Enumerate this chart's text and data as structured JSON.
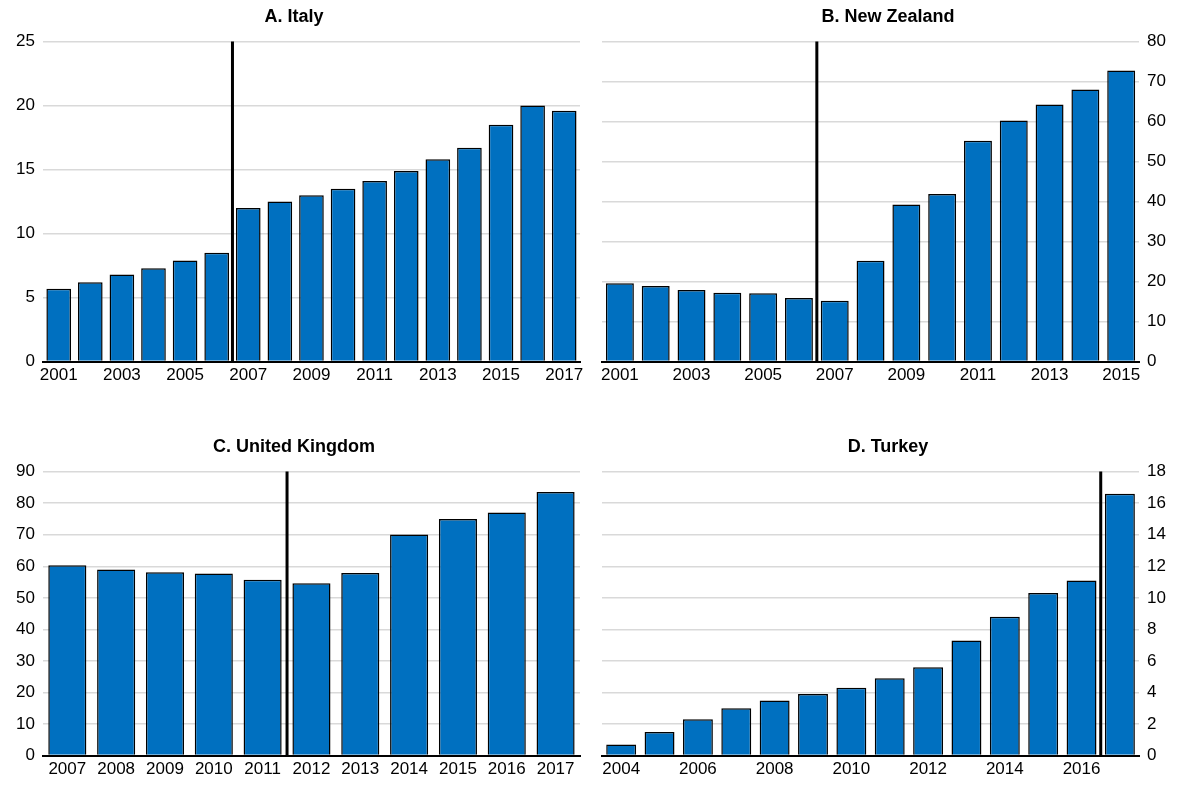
{
  "chart_data": [
    {
      "type": "bar",
      "title": "A. Italy",
      "x": [
        2001,
        2002,
        2003,
        2004,
        2005,
        2006,
        2007,
        2008,
        2009,
        2010,
        2011,
        2012,
        2013,
        2014,
        2015,
        2016,
        2017
      ],
      "xlim": [
        2000.5,
        2017.5
      ],
      "xticks": [
        2001,
        2003,
        2005,
        2007,
        2009,
        2011,
        2013,
        2015,
        2017
      ],
      "series": [
        {
          "color": "#0070c0",
          "values": [
            5.7,
            6.2,
            6.8,
            7.3,
            7.9,
            8.5,
            12.0,
            12.5,
            13.0,
            13.5,
            14.1,
            14.9,
            15.8,
            16.7,
            18.5,
            20.0,
            19.6
          ]
        }
      ],
      "ylim": [
        0,
        25
      ],
      "yticks": [
        0,
        5,
        10,
        15,
        20,
        25
      ],
      "grid": "y",
      "legend": false,
      "ref_lines": [
        {
          "axis": "x",
          "value": 2006.5,
          "color": "#000000"
        }
      ]
    },
    {
      "type": "bar",
      "title": "B. New Zealand",
      "x": [
        2001,
        2002,
        2003,
        2004,
        2005,
        2006,
        2007,
        2008,
        2009,
        2010,
        2011,
        2012,
        2013,
        2014,
        2015
      ],
      "xlim": [
        2000.5,
        2015.5
      ],
      "xticks": [
        2001,
        2003,
        2005,
        2007,
        2009,
        2011,
        2013,
        2015
      ],
      "series": [
        {
          "color": "#0070c0",
          "axis": "y2",
          "values": [
            19.6,
            18.9,
            17.9,
            17.2,
            17.1,
            15.9,
            15.2,
            25.2,
            39.3,
            41.9,
            55.2,
            60.3,
            64.3,
            68.0,
            72.8
          ]
        }
      ],
      "y2lim": [
        0,
        80
      ],
      "y2ticks": [
        0,
        10,
        20,
        30,
        40,
        50,
        60,
        70,
        80
      ],
      "grid": "y",
      "legend": false,
      "ref_lines": [
        {
          "axis": "x",
          "value": 2006.5,
          "color": "#000000"
        }
      ]
    },
    {
      "type": "bar",
      "title": "C. United Kingdom",
      "x": [
        2007,
        2008,
        2009,
        2010,
        2011,
        2012,
        2013,
        2014,
        2015,
        2016,
        2017
      ],
      "xlim": [
        2006.5,
        2017.5
      ],
      "xticks": [
        2007,
        2008,
        2009,
        2010,
        2011,
        2012,
        2013,
        2014,
        2015,
        2016,
        2017
      ],
      "series": [
        {
          "color": "#0070c0",
          "values": [
            60.3,
            59.0,
            58.1,
            57.7,
            55.7,
            54.6,
            57.9,
            70.1,
            75.0,
            77.0,
            83.5
          ]
        }
      ],
      "ylim": [
        0,
        90
      ],
      "yticks": [
        0,
        10,
        20,
        30,
        40,
        50,
        60,
        70,
        80,
        90
      ],
      "grid": "y",
      "legend": false,
      "ref_lines": [
        {
          "axis": "x",
          "value": 2011.5,
          "color": "#000000"
        }
      ]
    },
    {
      "type": "bar",
      "title": "D. Turkey",
      "x": [
        2004,
        2005,
        2006,
        2007,
        2008,
        2009,
        2010,
        2011,
        2012,
        2013,
        2014,
        2015,
        2016,
        2017
      ],
      "xlim": [
        2003.5,
        2017.5
      ],
      "xticks": [
        2004,
        2006,
        2008,
        2010,
        2012,
        2014,
        2016
      ],
      "series": [
        {
          "color": "#0070c0",
          "axis": "y2",
          "values": [
            0.7,
            1.5,
            2.3,
            3.0,
            3.5,
            3.9,
            4.3,
            4.9,
            5.6,
            7.3,
            8.8,
            10.3,
            11.1,
            16.6
          ]
        }
      ],
      "y2lim": [
        0,
        18
      ],
      "y2ticks": [
        0,
        2,
        4,
        6,
        8,
        10,
        12,
        14,
        16,
        18
      ],
      "grid": "y",
      "legend": false,
      "ref_lines": [
        {
          "axis": "x",
          "value": 2016.5,
          "color": "#000000"
        }
      ]
    }
  ]
}
